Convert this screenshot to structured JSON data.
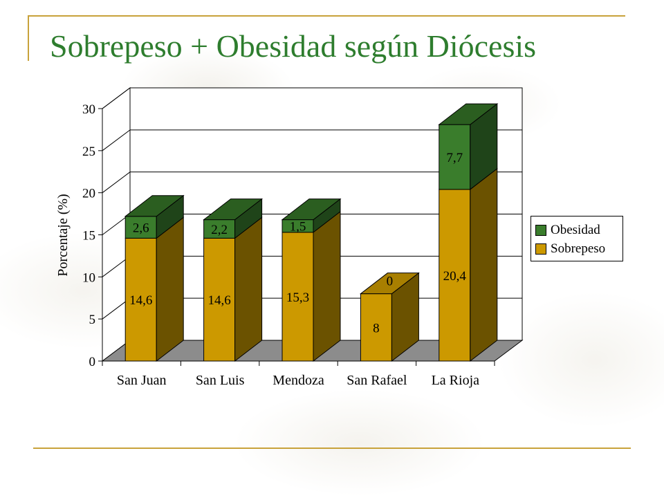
{
  "slide": {
    "title": "Sobrepeso + Obesidad según Diócesis"
  },
  "chart_data": {
    "type": "bar",
    "stacked": true,
    "style": "3d",
    "ylabel": "Porcentaje (%)",
    "xlabel": "",
    "ylim": [
      0,
      30
    ],
    "yticks": [
      "0",
      "5",
      "10",
      "15",
      "20",
      "25",
      "30"
    ],
    "grid": true,
    "legend_position": "right",
    "categories": [
      "San Juan",
      "San Luis",
      "Mendoza",
      "San Rafael",
      "La Rioja"
    ],
    "series": [
      {
        "name": "Sobrepeso",
        "values": [
          14.6,
          14.6,
          15.3,
          8,
          20.4
        ],
        "labels": [
          "14,6",
          "14,6",
          "15,3",
          "8",
          "20,4"
        ],
        "color": "#cc9900",
        "side_color": "#6b5200",
        "top_color": "#a87f00"
      },
      {
        "name": "Obesidad",
        "values": [
          2.6,
          2.2,
          1.5,
          0,
          7.7
        ],
        "labels": [
          "2,6",
          "2,2",
          "1,5",
          "0",
          "7,7"
        ],
        "color": "#3a7d2c",
        "side_color": "#1f4419",
        "top_color": "#2b5e20"
      }
    ]
  },
  "colors": {
    "title": "#2e7d2e",
    "accent_line": "#c8a23a",
    "floor": "#8c8c8c"
  }
}
